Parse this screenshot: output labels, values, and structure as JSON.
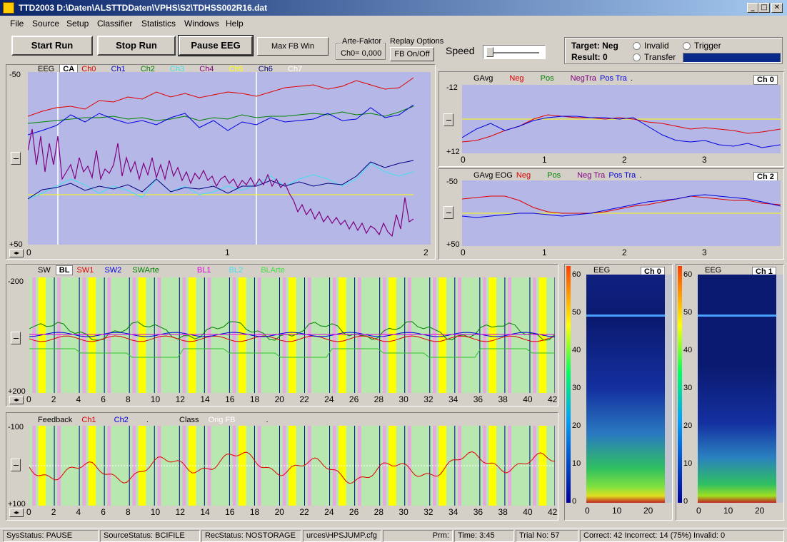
{
  "window": {
    "title": "TTD2003 D:\\Daten\\ALSTTDDaten\\VPHS\\S2\\TDHSS002R16.dat"
  },
  "menu": [
    "File",
    "Source",
    "Setup",
    "Classifier",
    "Statistics",
    "Windows",
    "Help"
  ],
  "toolbar": {
    "start_run": "Start Run",
    "stop_run": "Stop Run",
    "pause_eeg": "Pause EEG",
    "max_fb_win": "Max FB Win",
    "arte_label": "Arte-Faktor",
    "arte_value": "Ch0= 0,000",
    "replay_label": "Replay Options",
    "fb_onoff": "FB On/Off",
    "speed_label": "Speed"
  },
  "target": {
    "target_label": "Target: Neg",
    "result_label": "Result: 0",
    "invalid": "Invalid",
    "trigger": "Trigger",
    "transfer": "Transfer"
  },
  "eeg_chart": {
    "legend": [
      "EEG",
      "CA",
      "Ch0",
      "Ch1",
      "Ch2",
      "Ch3",
      "Ch4",
      "Ch5",
      "Ch6",
      "Ch7"
    ],
    "legend_colors": [
      "#000000",
      "#000000",
      "#e00000",
      "#0000e0",
      "#008000",
      "#40e0f0",
      "#800080",
      "#ffff00",
      "#000080",
      "#ffffff"
    ],
    "y_top": "-50",
    "y_bottom": "+50",
    "x_ticks": [
      "0",
      "1",
      "2"
    ]
  },
  "gavg_chart": {
    "legend": [
      "GAvg",
      "Neg",
      "Pos",
      "NegTra",
      "Pos Tra",
      "."
    ],
    "legend_colors": [
      "#000000",
      "#e00000",
      "#008000",
      "#800080",
      "#0000e0",
      "#000000"
    ],
    "ch": "Ch 0",
    "y_top": "-12",
    "y_bottom": "+12",
    "x_ticks": [
      "0",
      "1",
      "2",
      "3"
    ]
  },
  "gavg_eog_chart": {
    "legend": [
      "GAvg EOG",
      "Neg",
      "Pos",
      "Neg Tra",
      "Pos Tra",
      "."
    ],
    "legend_colors": [
      "#000000",
      "#e00000",
      "#008000",
      "#800080",
      "#0000e0",
      "#000000"
    ],
    "ch": "Ch 2",
    "y_top": "-50",
    "y_bottom": "+50",
    "x_ticks": [
      "0",
      "1",
      "2",
      "3"
    ]
  },
  "sw_chart": {
    "legend": [
      "SW",
      "BL",
      "SW1",
      "SW2",
      "SWArte",
      "BL1",
      "BL2",
      "BLArte"
    ],
    "legend_colors": [
      "#000000",
      "#000000",
      "#e00000",
      "#0000e0",
      "#008000",
      "#e000e0",
      "#40e0f0",
      "#40e040"
    ],
    "y_top": "-200",
    "y_bottom": "+200",
    "x_ticks": [
      "0",
      "2",
      "4",
      "6",
      "8",
      "10",
      "12",
      "14",
      "16",
      "18",
      "20",
      "22",
      "24",
      "26",
      "28",
      "30",
      "32",
      "34",
      "36",
      "38",
      "40",
      "42"
    ]
  },
  "feedback_chart": {
    "legend": [
      "Feedback",
      "Ch1",
      "Ch2",
      ".",
      "Class",
      "Orig FB",
      "."
    ],
    "legend_colors": [
      "#000000",
      "#e00000",
      "#0000e0",
      "#000000",
      "#000000",
      "#ffffff",
      "#000000"
    ],
    "y_top": "-100",
    "y_bottom": "+100",
    "x_ticks": [
      "0",
      "2",
      "4",
      "6",
      "8",
      "10",
      "12",
      "14",
      "16",
      "18",
      "20",
      "22",
      "24",
      "26",
      "28",
      "30",
      "32",
      "34",
      "36",
      "38",
      "40",
      "42"
    ]
  },
  "spectro0": {
    "title": "EEG",
    "ch": "Ch 0",
    "y_ticks": [
      "60",
      "50",
      "40",
      "30",
      "20",
      "10",
      "0"
    ],
    "x_ticks": [
      "0",
      "10",
      "20"
    ]
  },
  "spectro1": {
    "title": "EEG",
    "ch": "Ch 1",
    "y_ticks": [
      "60",
      "50",
      "40",
      "30",
      "20",
      "10",
      "0"
    ],
    "x_ticks": [
      "0",
      "10",
      "20"
    ]
  },
  "status": {
    "sys": "SysStatus: PAUSE",
    "source": "SourceStatus: BCIFILE",
    "rec": "RecStatus: NOSTORAGE",
    "cfg": "urces\\HPSJUMP.cfg",
    "prm": "Prm:",
    "time": "Time: 3:45",
    "trial": "Trial No: 57",
    "summary": "Correct: 42 Incorrect: 14 (75%) Invalid: 0"
  }
}
